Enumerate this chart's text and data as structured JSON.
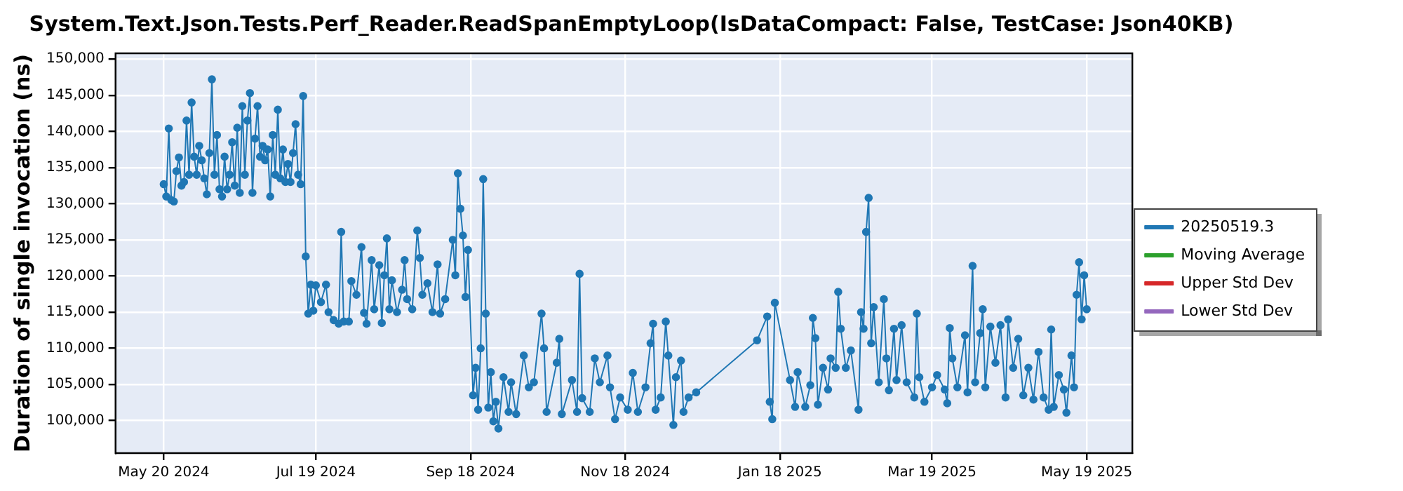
{
  "chart_data": {
    "type": "line",
    "title": "System.Text.Json.Tests.Perf_Reader.ReadSpanEmptyLoop(IsDataCompact: False, TestCase: Json40KB)",
    "ylabel": "Duration of single invocation (ns)",
    "xlim": [
      "2024-05-01",
      "2025-06-06"
    ],
    "xticks": [
      {
        "value": "2024-05-20",
        "label": "May 20 2024"
      },
      {
        "value": "2024-07-19",
        "label": "Jul 19 2024"
      },
      {
        "value": "2024-09-18",
        "label": "Sep 18 2024"
      },
      {
        "value": "2024-11-18",
        "label": "Nov 18 2024"
      },
      {
        "value": "2025-01-18",
        "label": "Jan 18 2025"
      },
      {
        "value": "2025-03-19",
        "label": "Mar 19 2025"
      },
      {
        "value": "2025-05-19",
        "label": "May 19 2025"
      }
    ],
    "ylim": [
      95500,
      150800
    ],
    "yticks": [
      {
        "value": 100000,
        "label": "100,000"
      },
      {
        "value": 105000,
        "label": "105,000"
      },
      {
        "value": 110000,
        "label": "110,000"
      },
      {
        "value": 115000,
        "label": "115,000"
      },
      {
        "value": 120000,
        "label": "120,000"
      },
      {
        "value": 125000,
        "label": "125,000"
      },
      {
        "value": 130000,
        "label": "130,000"
      },
      {
        "value": 135000,
        "label": "135,000"
      },
      {
        "value": 140000,
        "label": "140,000"
      },
      {
        "value": 145000,
        "label": "145,000"
      },
      {
        "value": 150000,
        "label": "150,000"
      }
    ],
    "grid": true,
    "legend": "right",
    "marker": "circle",
    "line_style": "solid",
    "series": [
      {
        "name": "20250519.3",
        "color": "#1f77b4",
        "x": [
          "2024-05-20",
          "2024-05-21",
          "2024-05-22",
          "2024-05-23",
          "2024-05-24",
          "2024-05-25",
          "2024-05-26",
          "2024-05-27",
          "2024-05-28",
          "2024-05-29",
          "2024-05-30",
          "2024-05-31",
          "2024-06-01",
          "2024-06-02",
          "2024-06-03",
          "2024-06-04",
          "2024-06-05",
          "2024-06-06",
          "2024-06-07",
          "2024-06-08",
          "2024-06-09",
          "2024-06-10",
          "2024-06-11",
          "2024-06-12",
          "2024-06-13",
          "2024-06-14",
          "2024-06-15",
          "2024-06-16",
          "2024-06-17",
          "2024-06-18",
          "2024-06-19",
          "2024-06-20",
          "2024-06-21",
          "2024-06-22",
          "2024-06-23",
          "2024-06-24",
          "2024-06-25",
          "2024-06-26",
          "2024-06-27",
          "2024-06-28",
          "2024-06-29",
          "2024-06-30",
          "2024-07-01",
          "2024-07-02",
          "2024-07-03",
          "2024-07-04",
          "2024-07-05",
          "2024-07-06",
          "2024-07-07",
          "2024-07-08",
          "2024-07-09",
          "2024-07-10",
          "2024-07-11",
          "2024-07-12",
          "2024-07-13",
          "2024-07-14",
          "2024-07-15",
          "2024-07-16",
          "2024-07-17",
          "2024-07-18",
          "2024-07-19",
          "2024-07-21",
          "2024-07-23",
          "2024-07-24",
          "2024-07-26",
          "2024-07-28",
          "2024-07-29",
          "2024-07-30",
          "2024-08-01",
          "2024-08-02",
          "2024-08-04",
          "2024-08-06",
          "2024-08-07",
          "2024-08-08",
          "2024-08-10",
          "2024-08-11",
          "2024-08-13",
          "2024-08-14",
          "2024-08-15",
          "2024-08-16",
          "2024-08-17",
          "2024-08-18",
          "2024-08-20",
          "2024-08-22",
          "2024-08-23",
          "2024-08-24",
          "2024-08-26",
          "2024-08-28",
          "2024-08-29",
          "2024-08-30",
          "2024-09-01",
          "2024-09-03",
          "2024-09-05",
          "2024-09-06",
          "2024-09-08",
          "2024-09-11",
          "2024-09-12",
          "2024-09-13",
          "2024-09-14",
          "2024-09-15",
          "2024-09-16",
          "2024-09-17",
          "2024-09-19",
          "2024-09-20",
          "2024-09-21",
          "2024-09-22",
          "2024-09-23",
          "2024-09-24",
          "2024-09-25",
          "2024-09-26",
          "2024-09-27",
          "2024-09-28",
          "2024-09-29",
          "2024-10-01",
          "2024-10-03",
          "2024-10-04",
          "2024-10-06",
          "2024-10-09",
          "2024-10-11",
          "2024-10-13",
          "2024-10-16",
          "2024-10-17",
          "2024-10-18",
          "2024-10-22",
          "2024-10-23",
          "2024-10-24",
          "2024-10-28",
          "2024-10-30",
          "2024-10-31",
          "2024-11-01",
          "2024-11-04",
          "2024-11-06",
          "2024-11-08",
          "2024-11-11",
          "2024-11-12",
          "2024-11-14",
          "2024-11-16",
          "2024-11-19",
          "2024-11-21",
          "2024-11-23",
          "2024-11-26",
          "2024-11-28",
          "2024-11-29",
          "2024-11-30",
          "2024-12-02",
          "2024-12-04",
          "2024-12-05",
          "2024-12-07",
          "2024-12-08",
          "2024-12-10",
          "2024-12-11",
          "2024-12-13",
          "2024-12-16",
          "2025-01-09",
          "2025-01-13",
          "2025-01-14",
          "2025-01-15",
          "2025-01-16",
          "2025-01-22",
          "2025-01-24",
          "2025-01-25",
          "2025-01-28",
          "2025-01-30",
          "2025-01-31",
          "2025-02-01",
          "2025-02-02",
          "2025-02-04",
          "2025-02-06",
          "2025-02-07",
          "2025-02-09",
          "2025-02-10",
          "2025-02-11",
          "2025-02-13",
          "2025-02-15",
          "2025-02-18",
          "2025-02-19",
          "2025-02-20",
          "2025-02-21",
          "2025-02-22",
          "2025-02-23",
          "2025-02-24",
          "2025-02-26",
          "2025-02-28",
          "2025-03-01",
          "2025-03-02",
          "2025-03-04",
          "2025-03-05",
          "2025-03-07",
          "2025-03-09",
          "2025-03-12",
          "2025-03-13",
          "2025-03-14",
          "2025-03-16",
          "2025-03-19",
          "2025-03-21",
          "2025-03-24",
          "2025-03-25",
          "2025-03-26",
          "2025-03-27",
          "2025-03-29",
          "2025-04-01",
          "2025-04-02",
          "2025-04-04",
          "2025-04-05",
          "2025-04-07",
          "2025-04-08",
          "2025-04-09",
          "2025-04-11",
          "2025-04-13",
          "2025-04-15",
          "2025-04-17",
          "2025-04-18",
          "2025-04-20",
          "2025-04-22",
          "2025-04-24",
          "2025-04-26",
          "2025-04-28",
          "2025-04-30",
          "2025-05-02",
          "2025-05-04",
          "2025-05-05",
          "2025-05-06",
          "2025-05-08",
          "2025-05-10",
          "2025-05-11",
          "2025-05-13",
          "2025-05-14",
          "2025-05-15",
          "2025-05-16",
          "2025-05-17",
          "2025-05-18",
          "2025-05-19"
        ],
        "values": [
          132700,
          131000,
          140400,
          130500,
          130300,
          134500,
          136400,
          132500,
          133000,
          141500,
          134000,
          144000,
          136500,
          134000,
          138000,
          136000,
          133500,
          131300,
          137000,
          147200,
          134000,
          139500,
          132000,
          131000,
          136500,
          132000,
          134000,
          138500,
          132500,
          140500,
          131500,
          143500,
          134000,
          141500,
          145300,
          131500,
          139000,
          143500,
          136500,
          138000,
          136000,
          137500,
          131000,
          139500,
          134000,
          143000,
          133500,
          137500,
          133000,
          135500,
          133000,
          137000,
          141000,
          134000,
          132700,
          144900,
          122700,
          114800,
          118800,
          115200,
          118700,
          116400,
          118800,
          115000,
          113900,
          113400,
          126100,
          113700,
          113700,
          119300,
          117400,
          124000,
          114900,
          113400,
          122200,
          115400,
          121500,
          113500,
          120100,
          125200,
          115400,
          119400,
          115000,
          118100,
          122200,
          116800,
          115400,
          126300,
          122500,
          117400,
          119000,
          115000,
          121600,
          114800,
          116800,
          125000,
          120100,
          134200,
          129300,
          125600,
          117100,
          123600,
          103500,
          107300,
          101500,
          110000,
          133400,
          114800,
          101800,
          106700,
          99900,
          102600,
          98900,
          106000,
          101200,
          105300,
          100900,
          109000,
          104600,
          105300,
          114800,
          110000,
          101200,
          108000,
          111300,
          100900,
          105600,
          101200,
          120300,
          103100,
          101200,
          108600,
          105300,
          109000,
          104600,
          100200,
          103200,
          101500,
          106600,
          101200,
          104600,
          110700,
          113400,
          101500,
          103200,
          113700,
          109000,
          99400,
          106000,
          108300,
          101200,
          103200,
          103900,
          111100,
          114400,
          102600,
          100200,
          116300,
          105600,
          101900,
          106700,
          101900,
          104900,
          114200,
          111400,
          102200,
          107300,
          104300,
          108600,
          107300,
          117800,
          112700,
          107300,
          109700,
          101500,
          115000,
          112700,
          126100,
          130800,
          110700,
          115700,
          105300,
          116800,
          108600,
          104200,
          112700,
          105600,
          113200,
          105300,
          103200,
          114800,
          106000,
          102600,
          104600,
          106300,
          104300,
          102400,
          112800,
          108600,
          104600,
          111800,
          103900,
          121400,
          105300,
          112100,
          115400,
          104600,
          113000,
          108000,
          113200,
          103200,
          114000,
          107300,
          111300,
          103500,
          107300,
          102900,
          109500,
          103200,
          101500,
          112600,
          101900,
          106300,
          104300,
          101100,
          109000,
          104600,
          117400,
          121900,
          114000,
          120100,
          115400
        ]
      },
      {
        "name": "Moving Average",
        "color": "#2ca02c"
      },
      {
        "name": "Upper Std Dev",
        "color": "#d62728"
      },
      {
        "name": "Lower Std Dev",
        "color": "#9467bd"
      }
    ]
  }
}
